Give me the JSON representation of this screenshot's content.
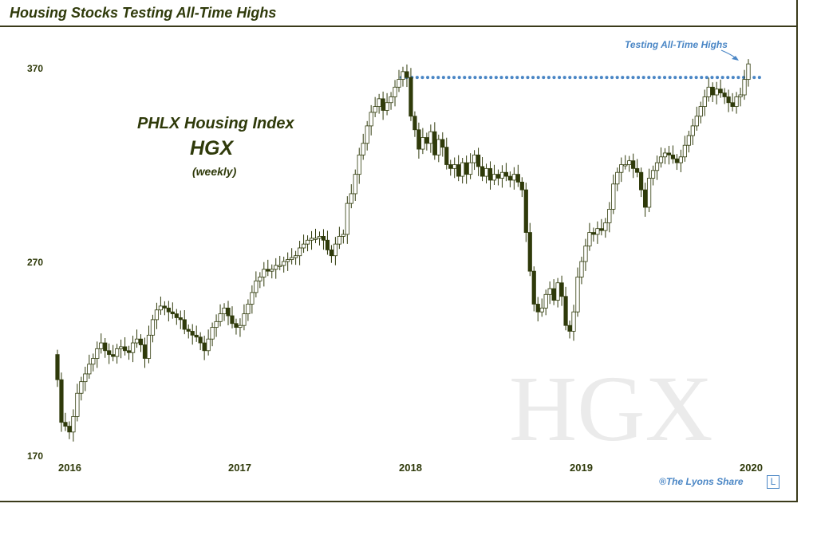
{
  "header": {
    "title": "Housing Stocks Testing All-Time Highs"
  },
  "legend": {
    "line1": "PHLX Housing Index",
    "line2": "HGX",
    "line3": "(weekly)"
  },
  "watermark": "HGX",
  "credit": "®The Lyons Share",
  "logo_letter": "L",
  "colors": {
    "ink": "#2f3a0a",
    "accent": "#4a86c5",
    "candle_down": "#2f3a0a",
    "candle_up": "#ffffff",
    "watermark": "#ebebeb"
  },
  "chart_data": {
    "type": "candlestick",
    "title": "Housing Stocks Testing All-Time Highs",
    "subtitle": "PHLX Housing Index HGX (weekly)",
    "frequency": "weekly",
    "ylim": [
      170,
      370
    ],
    "yticks": [
      170,
      270,
      370
    ],
    "x_ticks": [
      "2016",
      "2017",
      "2018",
      "2019",
      "2020"
    ],
    "resistance_level": 365,
    "annotations": [
      {
        "text": "Testing All-Time Highs",
        "points_to": "resistance line at right edge"
      }
    ],
    "series": [
      {
        "name": "HGX",
        "close": [
          209,
          187,
          185,
          182,
          190,
          202,
          208,
          212,
          217,
          220,
          225,
          228,
          224,
          222,
          221,
          225,
          226,
          224,
          223,
          228,
          230,
          227,
          220,
          232,
          240,
          245,
          247,
          246,
          244,
          243,
          241,
          240,
          235,
          234,
          232,
          231,
          228,
          224,
          230,
          236,
          239,
          243,
          246,
          242,
          238,
          236,
          237,
          243,
          248,
          254,
          260,
          262,
          266,
          265,
          266,
          268,
          268,
          270,
          271,
          272,
          273,
          277,
          279,
          281,
          282,
          282,
          283,
          281,
          276,
          273,
          279,
          283,
          284,
          300,
          305,
          315,
          325,
          331,
          340,
          347,
          350,
          354,
          348,
          352,
          355,
          360,
          364,
          368,
          365,
          345,
          338,
          328,
          334,
          331,
          337,
          325,
          333,
          329,
          320,
          318,
          320,
          314,
          321,
          315,
          321,
          325,
          319,
          314,
          318,
          312,
          315,
          313,
          316,
          314,
          312,
          315,
          311,
          307,
          285,
          265,
          248,
          244,
          246,
          253,
          256,
          250,
          259,
          252,
          237,
          234,
          244,
          262,
          270,
          278,
          285,
          284,
          287,
          286,
          290,
          297,
          310,
          316,
          320,
          320,
          322,
          318,
          316,
          307,
          298,
          313,
          317,
          321,
          324,
          326,
          325,
          323,
          321,
          324,
          330,
          335,
          340,
          345,
          350,
          355,
          360,
          356,
          359,
          357,
          355,
          352,
          350,
          355,
          356,
          364,
          372
        ],
        "open_close_note": "candle bodies: hollow = up week, dark = down week"
      }
    ]
  }
}
